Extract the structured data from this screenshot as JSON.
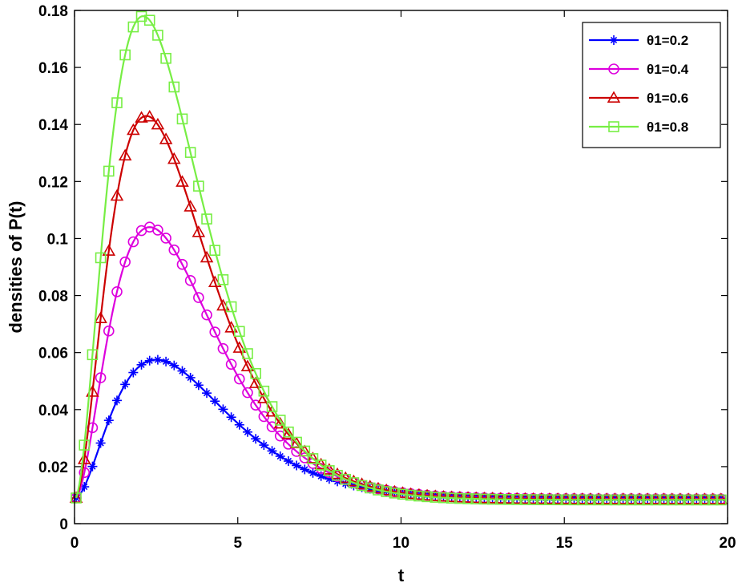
{
  "chart_data": {
    "type": "line",
    "title": "",
    "xlabel": "t",
    "ylabel": "densities of P(t)",
    "xlim": [
      0,
      20
    ],
    "ylim": [
      0,
      0.18
    ],
    "xticks": [
      "0",
      "5",
      "10",
      "15",
      "20"
    ],
    "yticks": [
      "0",
      "0.02",
      "0.04",
      "0.06",
      "0.08",
      "0.1",
      "0.12",
      "0.14",
      "0.16",
      "0.18"
    ],
    "grid": false,
    "legend_position": "top-right",
    "series": [
      {
        "name": "θ1=0.2",
        "color": "#0000ff",
        "marker": "asterisk",
        "peak_t": 2.5,
        "peak_value": 0.0575,
        "start_value": 0.009
      },
      {
        "name": "θ1=0.4",
        "color": "#dd00dd",
        "marker": "circle",
        "peak_t": 2.3,
        "peak_value": 0.104,
        "start_value": 0.009
      },
      {
        "name": "θ1=0.6",
        "color": "#cc0000",
        "marker": "triangle",
        "peak_t": 2.2,
        "peak_value": 0.143,
        "start_value": 0.009
      },
      {
        "name": "θ1=0.8",
        "color": "#77ee44",
        "marker": "square",
        "peak_t": 2.1,
        "peak_value": 0.178,
        "start_value": 0.009
      }
    ]
  }
}
